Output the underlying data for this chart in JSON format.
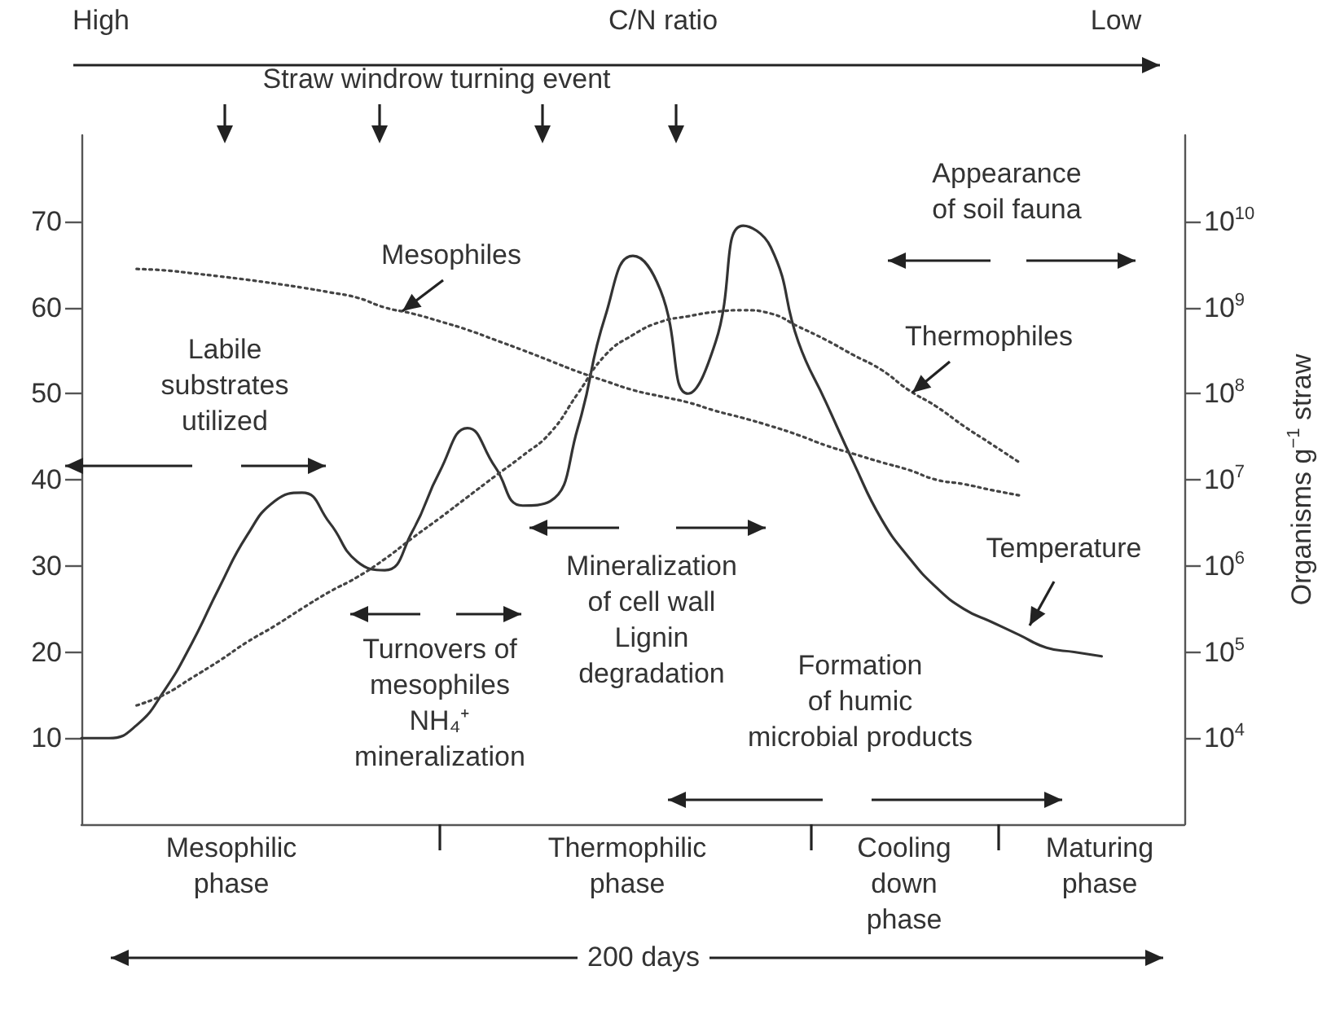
{
  "chart_data": {
    "type": "line",
    "categories": [
      null,
      null,
      null,
      null,
      null,
      null,
      null,
      null,
      null,
      null,
      null,
      null,
      null,
      null,
      null,
      null,
      null,
      null,
      null,
      null,
      null,
      null,
      null,
      null,
      null,
      null,
      null,
      null,
      null,
      null,
      null,
      null,
      null,
      null,
      null,
      null,
      null,
      null,
      null,
      null,
      null
    ],
    "ylim": [
      0,
      80
    ],
    "yticks": [
      10,
      20,
      30,
      40,
      50,
      60,
      70
    ],
    "y2label": "Organisms g$^{−1}$ straw",
    "y2lim": [
      1000,
      100000000000
    ],
    "y2ticks": [
      {
        "value": 10000,
        "label": "10$^{4}$"
      },
      {
        "value": 100000,
        "label": "10$^{5}$"
      },
      {
        "value": 1000000,
        "label": "10$^{6}$"
      },
      {
        "value": 10000000,
        "label": "10$^{7}$"
      },
      {
        "value": 100000000,
        "label": "10$^{8}$"
      },
      {
        "value": 1000000000,
        "label": "10$^{9}$"
      },
      {
        "value": 10000000000,
        "label": "10$^{10}$"
      }
    ],
    "log": "y2",
    "grid": false,
    "legend": false,
    "marker": "none",
    "series": [
      {
        "name": "Temperature",
        "color": "#333333",
        "line_style": "solid",
        "values": [
          10,
          10,
          11.5,
          15.5,
          21,
          27.5,
          33.5,
          37.5,
          38.5,
          35,
          30.5,
          29.5,
          34,
          41,
          46,
          41.5,
          37,
          37.5,
          46,
          59,
          66,
          62,
          50,
          56,
          69.5,
          67,
          56,
          49,
          42,
          35.5,
          31,
          27.5,
          25,
          23.5,
          22,
          20.5,
          20,
          19.5,
          null,
          null,
          null
        ]
      },
      {
        "name": "Mesophiles",
        "color": "#444444",
        "line_style": "dotted",
        "axis": "y2",
        "values": [
          null,
          null,
          2800000000.0,
          2700000000.0,
          2500000000.0,
          2300000000.0,
          2100000000.0,
          1900000000.0,
          1700000000.0,
          1500000000.0,
          1300000000.0,
          1000000000.0,
          850000000.0,
          690000000.0,
          550000000.0,
          420000000.0,
          320000000.0,
          240000000.0,
          180000000.0,
          140000000.0,
          110000000.0,
          93000000.0,
          79000000.0,
          63000000.0,
          52000000.0,
          42000000.0,
          33000000.0,
          25000000.0,
          20000000.0,
          16000000.0,
          13000000.0,
          10000000.0,
          8900000.0,
          7600000.0,
          6600000.0,
          null,
          null,
          null,
          null,
          null,
          null
        ]
      },
      {
        "name": "Thermophiles",
        "color": "#444444",
        "line_style": "dotted",
        "axis": "y2",
        "values": [
          null,
          null,
          24000.0,
          32000.0,
          50000.0,
          79000.0,
          130000.0,
          200000.0,
          320000.0,
          500000.0,
          740000.0,
          1200000.0,
          2100000.0,
          3600000.0,
          6300000.0,
          11000000.0,
          19000000.0,
          35000000.0,
          100000000.0,
          280000000.0,
          480000000.0,
          680000000.0,
          790000000.0,
          890000000.0,
          930000000.0,
          850000000.0,
          600000000.0,
          420000000.0,
          280000000.0,
          190000000.0,
          110000000.0,
          71000000.0,
          42000000.0,
          26000000.0,
          16000000.0,
          null,
          null,
          null,
          null,
          null,
          null
        ]
      }
    ],
    "annotations": [
      "High",
      "C/N ratio",
      "Low",
      "Straw windrow turning event",
      "Appearance\nof soil fauna",
      "Labile\nsubstrates\nutilized",
      "Turnovers of\nmesophiles\nNH₄⁺\nmineralization",
      "Mineralization\nof cell wall\nLignin\ndegradation",
      "Formation\nof humic\nmicrobial products",
      "Mesophilic\nphase",
      "Thermophilic\nphase",
      "Cooling\ndown\nphase",
      "Maturing\nphase",
      "200 days"
    ]
  }
}
